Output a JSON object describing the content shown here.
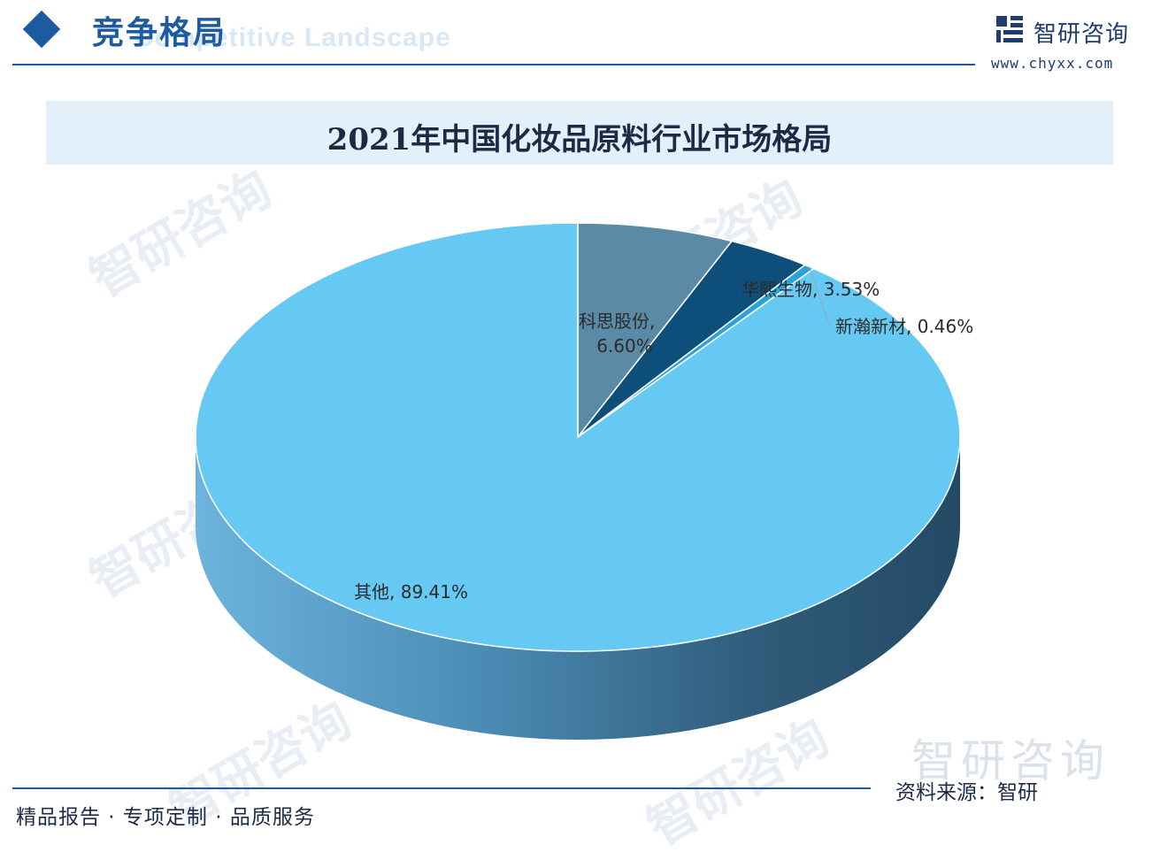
{
  "header": {
    "section_title": "竞争格局",
    "section_subtitle": "Competitive Landscape",
    "logo_name": "智研咨询",
    "logo_url": "www.chyxx.com",
    "accent_color": "#1e5b9e"
  },
  "footer": {
    "tagline": "精品报告 · 专项定制 · 品质服务",
    "source": "资料来源：智研",
    "brand_watermark": "智研咨询"
  },
  "watermark_text": "智研咨询",
  "chart_data": {
    "type": "pie",
    "title": "2021年中国化妆品原料行业市场格局",
    "slices": [
      {
        "name": "科思股份",
        "value": 6.6,
        "label": "科思股份,",
        "value_label": "6.60%",
        "color": "#5b8aa6"
      },
      {
        "name": "华熙生物",
        "value": 3.53,
        "label": "华熙生物, 3.53%",
        "color": "#0d4f7a"
      },
      {
        "name": "新瀚新材",
        "value": 0.46,
        "label": "新瀚新材, 0.46%",
        "color": "#2aa3d9"
      },
      {
        "name": "其他",
        "value": 89.41,
        "label": "其他, 89.41%",
        "color": "#66c9f3"
      }
    ],
    "style": "3d-pie",
    "legend": "none"
  }
}
